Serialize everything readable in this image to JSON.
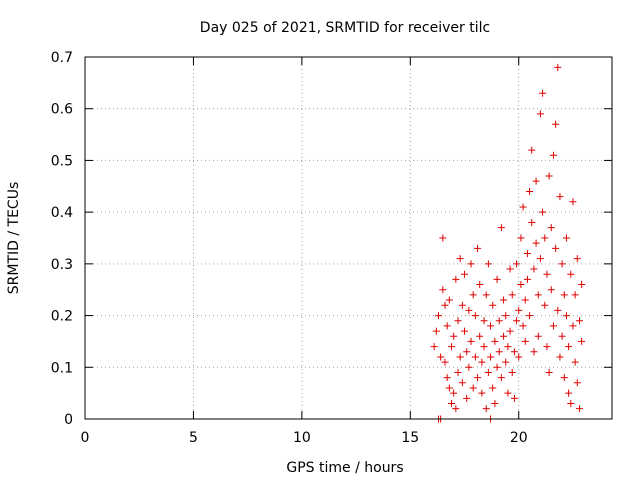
{
  "chart_data": {
    "type": "scatter",
    "title": "Day 025 of 2021, SRMTID for receiver tilc",
    "xlabel": "GPS time / hours",
    "ylabel": "SRMTID / TECUs",
    "xlim": [
      0,
      24.3
    ],
    "ylim": [
      0,
      0.7
    ],
    "xticks": [
      0,
      5,
      10,
      15,
      20
    ],
    "xtick_labels": [
      "0",
      "5",
      "10",
      "15",
      "20"
    ],
    "yticks": [
      0,
      0.1,
      0.2,
      0.3,
      0.4,
      0.5,
      0.6,
      0.7
    ],
    "ytick_labels": [
      "0",
      "0.1",
      "0.2",
      "0.3",
      "0.4",
      "0.5",
      "0.6",
      "0.7"
    ],
    "grid": true,
    "marker": "+",
    "color": "#e00000",
    "series": [
      {
        "name": "SRMTID",
        "points": [
          [
            16.1,
            0.14
          ],
          [
            16.2,
            0.17
          ],
          [
            16.3,
            0.2
          ],
          [
            16.4,
            0.12
          ],
          [
            16.5,
            0.25
          ],
          [
            16.5,
            0.35
          ],
          [
            16.6,
            0.22
          ],
          [
            16.6,
            0.11
          ],
          [
            16.7,
            0.08
          ],
          [
            16.7,
            0.18
          ],
          [
            16.8,
            0.06
          ],
          [
            16.8,
            0.23
          ],
          [
            16.9,
            0.14
          ],
          [
            16.9,
            0.03
          ],
          [
            17.0,
            0.05
          ],
          [
            17.0,
            0.16
          ],
          [
            17.1,
            0.02
          ],
          [
            17.1,
            0.27
          ],
          [
            17.2,
            0.09
          ],
          [
            17.2,
            0.19
          ],
          [
            17.3,
            0.31
          ],
          [
            17.3,
            0.12
          ],
          [
            17.4,
            0.22
          ],
          [
            17.4,
            0.07
          ],
          [
            17.5,
            0.17
          ],
          [
            17.5,
            0.28
          ],
          [
            17.6,
            0.13
          ],
          [
            17.6,
            0.04
          ],
          [
            17.7,
            0.21
          ],
          [
            17.7,
            0.1
          ],
          [
            17.8,
            0.3
          ],
          [
            17.8,
            0.15
          ],
          [
            17.9,
            0.06
          ],
          [
            17.9,
            0.24
          ],
          [
            18.0,
            0.12
          ],
          [
            18.0,
            0.2
          ],
          [
            18.1,
            0.08
          ],
          [
            18.1,
            0.33
          ],
          [
            18.2,
            0.16
          ],
          [
            18.2,
            0.26
          ],
          [
            18.3,
            0.05
          ],
          [
            18.3,
            0.11
          ],
          [
            18.4,
            0.19
          ],
          [
            18.4,
            0.14
          ],
          [
            18.5,
            0.24
          ],
          [
            18.5,
            0.02
          ],
          [
            18.6,
            0.09
          ],
          [
            18.6,
            0.3
          ],
          [
            18.7,
            0.18
          ],
          [
            18.7,
            0.12
          ],
          [
            18.8,
            0.06
          ],
          [
            18.8,
            0.22
          ],
          [
            18.9,
            0.03
          ],
          [
            18.9,
            0.15
          ],
          [
            19.0,
            0.1
          ],
          [
            19.0,
            0.27
          ],
          [
            19.1,
            0.19
          ],
          [
            19.1,
            0.13
          ],
          [
            19.2,
            0.37
          ],
          [
            19.2,
            0.08
          ],
          [
            19.3,
            0.16
          ],
          [
            19.3,
            0.23
          ],
          [
            19.4,
            0.11
          ],
          [
            19.4,
            0.2
          ],
          [
            19.5,
            0.05
          ],
          [
            19.5,
            0.14
          ],
          [
            19.6,
            0.29
          ],
          [
            19.6,
            0.17
          ],
          [
            19.7,
            0.09
          ],
          [
            19.7,
            0.24
          ],
          [
            19.8,
            0.13
          ],
          [
            19.8,
            0.04
          ],
          [
            19.9,
            0.19
          ],
          [
            19.9,
            0.3
          ],
          [
            20.0,
            0.21
          ],
          [
            20.0,
            0.12
          ],
          [
            20.1,
            0.26
          ],
          [
            20.1,
            0.35
          ],
          [
            20.2,
            0.18
          ],
          [
            20.2,
            0.41
          ],
          [
            20.3,
            0.23
          ],
          [
            20.3,
            0.15
          ],
          [
            20.4,
            0.32
          ],
          [
            20.4,
            0.27
          ],
          [
            20.5,
            0.44
          ],
          [
            20.5,
            0.2
          ],
          [
            20.6,
            0.38
          ],
          [
            20.6,
            0.52
          ],
          [
            20.7,
            0.29
          ],
          [
            20.7,
            0.13
          ],
          [
            20.8,
            0.34
          ],
          [
            20.8,
            0.46
          ],
          [
            20.9,
            0.24
          ],
          [
            20.9,
            0.16
          ],
          [
            21.0,
            0.31
          ],
          [
            21.0,
            0.59
          ],
          [
            21.1,
            0.4
          ],
          [
            21.1,
            0.63
          ],
          [
            21.2,
            0.22
          ],
          [
            21.2,
            0.35
          ],
          [
            21.3,
            0.28
          ],
          [
            21.3,
            0.14
          ],
          [
            21.4,
            0.47
          ],
          [
            21.4,
            0.09
          ],
          [
            21.5,
            0.37
          ],
          [
            21.5,
            0.25
          ],
          [
            21.6,
            0.51
          ],
          [
            21.6,
            0.18
          ],
          [
            21.7,
            0.33
          ],
          [
            21.7,
            0.57
          ],
          [
            21.8,
            0.68
          ],
          [
            21.8,
            0.21
          ],
          [
            21.9,
            0.43
          ],
          [
            21.9,
            0.12
          ],
          [
            22.0,
            0.3
          ],
          [
            22.0,
            0.16
          ],
          [
            22.1,
            0.24
          ],
          [
            22.1,
            0.08
          ],
          [
            22.2,
            0.2
          ],
          [
            22.2,
            0.35
          ],
          [
            22.3,
            0.05
          ],
          [
            22.3,
            0.14
          ],
          [
            22.4,
            0.28
          ],
          [
            22.4,
            0.03
          ],
          [
            22.5,
            0.18
          ],
          [
            22.5,
            0.42
          ],
          [
            22.6,
            0.11
          ],
          [
            22.6,
            0.24
          ],
          [
            22.7,
            0.07
          ],
          [
            22.7,
            0.31
          ],
          [
            22.8,
            0.19
          ],
          [
            22.8,
            0.02
          ],
          [
            22.9,
            0.15
          ],
          [
            22.9,
            0.26
          ],
          [
            16.3,
            0.0
          ],
          [
            16.4,
            0.0
          ],
          [
            18.7,
            0.0
          ]
        ]
      }
    ]
  }
}
